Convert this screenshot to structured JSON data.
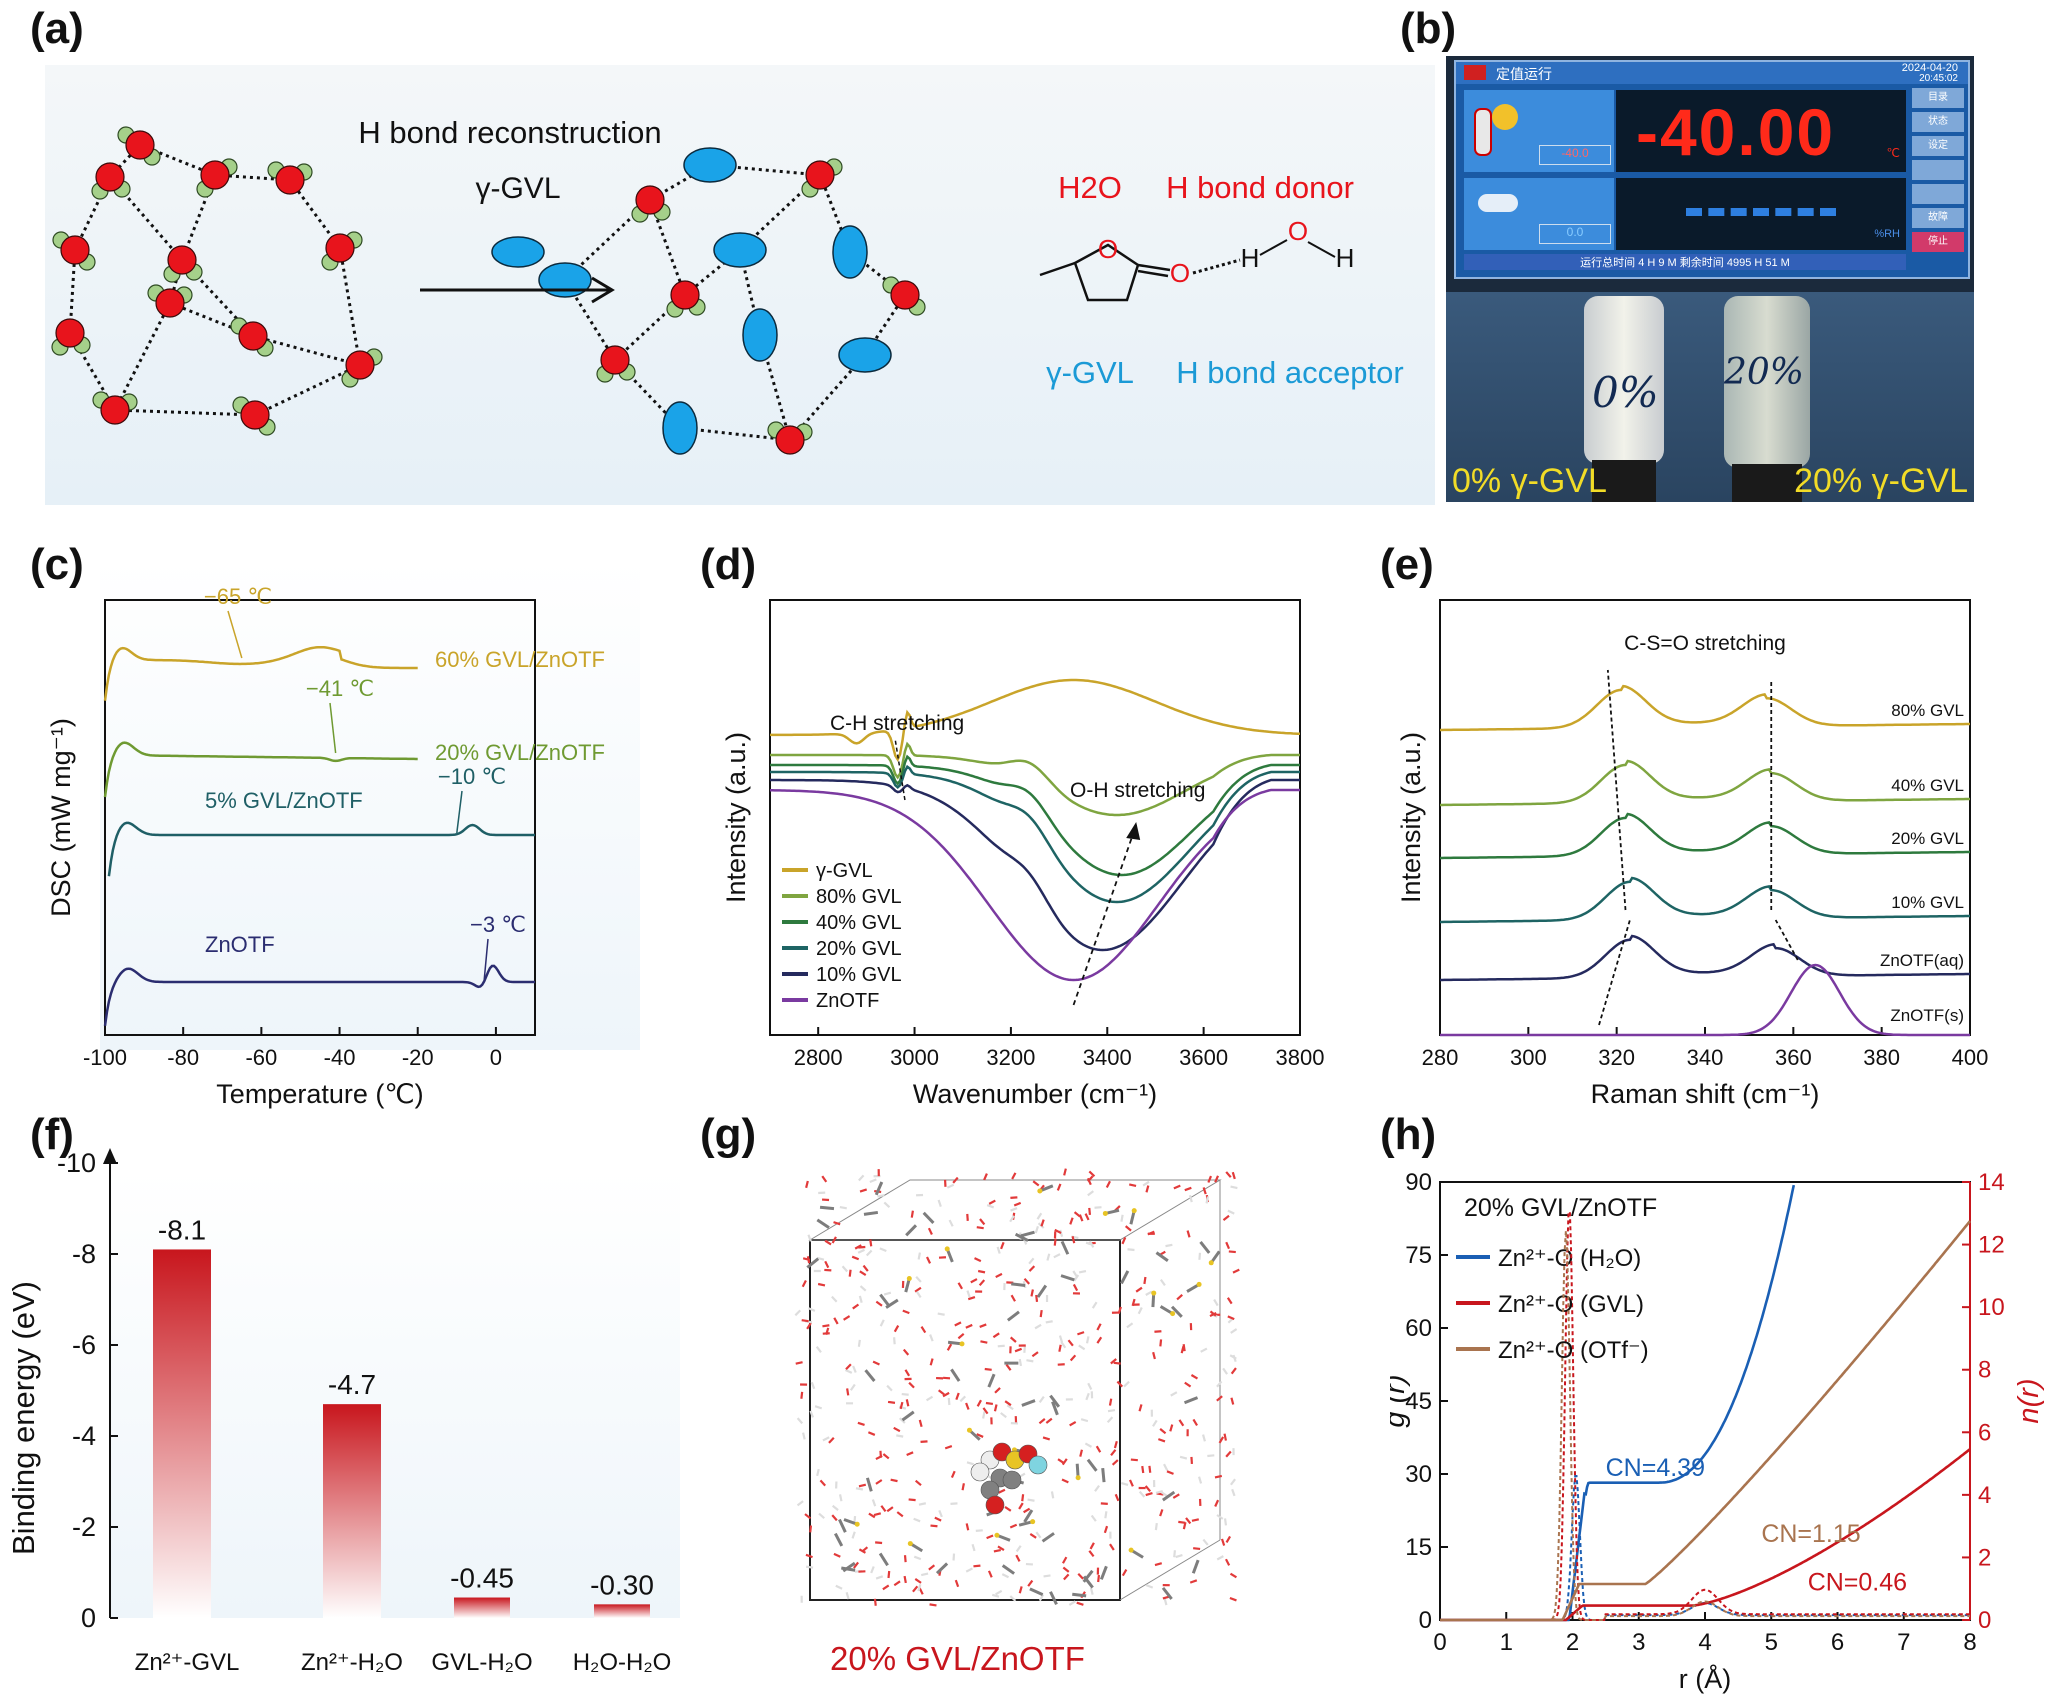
{
  "panels": {
    "a": {
      "letter": "(a)",
      "title": "H bond reconstruction",
      "reagent": "γ-GVL",
      "water": "H2O",
      "donor": "H bond donor",
      "gvl": "γ-GVL",
      "acceptor": "H bond acceptor",
      "colors": {
        "water_o": "#e8141c",
        "water_h": "#a5d08a",
        "gvl": "#1aa3e8",
        "red_text": "#e8141c",
        "blue_text": "#1b9ad6"
      }
    },
    "b": {
      "letter": "(b)",
      "header_text": "定值运行",
      "date": "2024-04-20",
      "time": "20:45:02",
      "temp_display": "-40.00",
      "temp_unit": "℃",
      "temp_set": "-40.0",
      "humid_set": "0.0",
      "humid_unit": "%RH",
      "status_line": "运行总时间  4  H 9 M    剩余时间 4995 H 51 M",
      "side_buttons": [
        "目录",
        "状态",
        "设定",
        "",
        "",
        "故障",
        "停止"
      ],
      "vial_left_mark": "0%",
      "vial_right_mark": "20%",
      "caption_left": "0% γ-GVL",
      "caption_right": "20% γ-GVL"
    },
    "c": {
      "letter": "(c)"
    },
    "d": {
      "letter": "(d)"
    },
    "e": {
      "letter": "(e)"
    },
    "f": {
      "letter": "(f)"
    },
    "g": {
      "letter": "(g)",
      "caption": "20% GVL/ZnOTF"
    },
    "h": {
      "letter": "(h)"
    }
  },
  "chart_data": [
    {
      "id": "c",
      "type": "line",
      "xlabel": "Temperature (℃)",
      "ylabel": "DSC (mW mg⁻¹)",
      "xlim": [
        -100,
        10
      ],
      "xticks": [
        -100,
        -80,
        -60,
        -40,
        -20,
        0
      ],
      "series": [
        {
          "name": "60% GVL/ZnOTF",
          "color": "#c9a42a",
          "annotation": "−65 ℃",
          "annotation_x": -65
        },
        {
          "name": "20% GVL/ZnOTF",
          "color": "#6f9a32",
          "annotation": "−41 ℃",
          "annotation_x": -41
        },
        {
          "name": "5% GVL/ZnOTF",
          "color": "#1f5f66",
          "annotation": "−10 ℃",
          "annotation_x": -10
        },
        {
          "name": "ZnOTF",
          "color": "#2b2d70",
          "annotation": "−3 ℃",
          "annotation_x": -3
        }
      ]
    },
    {
      "id": "d",
      "type": "line",
      "xlabel": "Wavenumber (cm⁻¹)",
      "ylabel": "Intensity (a.u.)",
      "xlim": [
        2700,
        3800
      ],
      "xticks": [
        2800,
        3000,
        3200,
        3400,
        3600,
        3800
      ],
      "annotations": [
        "C-H stretching",
        "O-H stretching"
      ],
      "series": [
        {
          "name": "γ-GVL",
          "color": "#c9a42a",
          "minimum_x": 2960
        },
        {
          "name": "80% GVL",
          "color": "#7fa540",
          "minimum_x": 3420
        },
        {
          "name": "40% GVL",
          "color": "#2e7a3e",
          "minimum_x": 3440
        },
        {
          "name": "20% GVL",
          "color": "#1e6464",
          "minimum_x": 3420
        },
        {
          "name": "10% GVL",
          "color": "#252a5e",
          "minimum_x": 3390
        },
        {
          "name": "ZnOTF",
          "color": "#7a3aa0",
          "minimum_x": 3330
        }
      ]
    },
    {
      "id": "e",
      "type": "line",
      "xlabel": "Raman shift (cm⁻¹)",
      "ylabel": "Intensity (a.u.)",
      "xlim": [
        280,
        400
      ],
      "xticks": [
        280,
        300,
        320,
        340,
        360,
        380,
        400
      ],
      "annotations": [
        "C-S=O stretching"
      ],
      "series": [
        {
          "name": "80% GVL",
          "color": "#c9a42a",
          "peaks": [
            321,
            354
          ]
        },
        {
          "name": "40% GVL",
          "color": "#7fa540",
          "peaks": [
            322,
            355
          ]
        },
        {
          "name": "20% GVL",
          "color": "#2e7a3e",
          "peaks": [
            322,
            355
          ]
        },
        {
          "name": "10% GVL",
          "color": "#1e6464",
          "peaks": [
            323,
            355
          ]
        },
        {
          "name": "ZnOTF(aq)",
          "color": "#252a5e",
          "peaks": [
            323,
            356
          ]
        },
        {
          "name": "ZnOTF(s)",
          "color": "#7a3aa0",
          "peaks": [
            365
          ]
        }
      ]
    },
    {
      "id": "f",
      "type": "bar",
      "ylabel": "Binding energy (eV)",
      "ylim": [
        0,
        -10
      ],
      "yticks": [
        0,
        -2,
        -4,
        -6,
        -8,
        -10
      ],
      "categories": [
        "Zn²⁺-GVL",
        "Zn²⁺-H₂O",
        "GVL-H₂O",
        "H₂O-H₂O"
      ],
      "values": [
        -8.1,
        -4.7,
        -0.45,
        -0.3
      ],
      "labels": [
        "-8.1",
        "-4.7",
        "-0.45",
        "-0.30"
      ],
      "color": "#c8161d"
    },
    {
      "id": "h",
      "type": "line",
      "title": "20% GVL/ZnOTF",
      "xlabel": "r (Å)",
      "ylabel": "g (r)",
      "y2label": "n(r)",
      "xlim": [
        0,
        8
      ],
      "ylim": [
        0,
        90
      ],
      "y2lim": [
        0,
        14
      ],
      "xticks": [
        0,
        1,
        2,
        3,
        4,
        5,
        6,
        7,
        8
      ],
      "yticks": [
        0,
        15,
        30,
        45,
        60,
        75,
        90
      ],
      "y2ticks": [
        0,
        2,
        4,
        6,
        8,
        10,
        12,
        14
      ],
      "series": [
        {
          "name": "Zn²⁺-O (H₂O)",
          "color": "#1a5fb4",
          "cn_label": "CN=4.39",
          "cn": 4.39
        },
        {
          "name": "Zn²⁺-O (GVL)",
          "color": "#c8161d",
          "cn_label": "CN=0.46",
          "cn": 0.46
        },
        {
          "name": "Zn²⁺-O (OTf⁻)",
          "color": "#a9744f",
          "cn_label": "CN=1.15",
          "cn": 1.15
        }
      ]
    }
  ]
}
